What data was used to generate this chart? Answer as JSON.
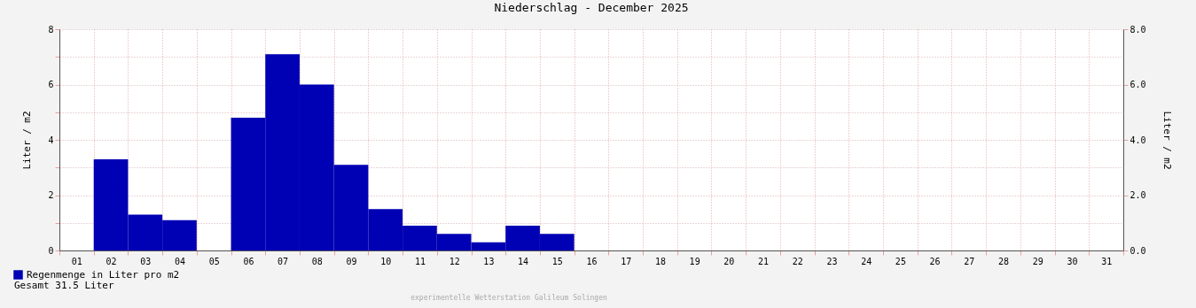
{
  "chart_data": {
    "type": "bar",
    "title": "Niederschlag - December 2025",
    "categories": [
      "01",
      "02",
      "03",
      "04",
      "05",
      "06",
      "07",
      "08",
      "09",
      "10",
      "11",
      "12",
      "13",
      "14",
      "15",
      "16",
      "17",
      "18",
      "19",
      "20",
      "21",
      "22",
      "23",
      "24",
      "25",
      "26",
      "27",
      "28",
      "29",
      "30",
      "31"
    ],
    "series": [
      {
        "name": "Regenmenge in Liter pro m2",
        "color": "#0000b4",
        "values": [
          0,
          3.3,
          1.3,
          1.1,
          0,
          4.8,
          7.1,
          6.0,
          3.1,
          1.5,
          0.9,
          0.6,
          0.3,
          0.9,
          0.6,
          null,
          null,
          null,
          null,
          null,
          null,
          null,
          null,
          null,
          null,
          null,
          null,
          null,
          null,
          null,
          null
        ]
      }
    ],
    "ylabel": "Liter / m2",
    "y2label": "Liter / m2",
    "ylim": [
      0,
      8
    ],
    "yticks": [
      0,
      {
        "value": 1,
        "label": null
      },
      2,
      {
        "value": 3,
        "label": null
      },
      4,
      {
        "value": 5,
        "label": null
      },
      6,
      {
        "value": 7,
        "label": null
      },
      8
    ],
    "y2lim": [
      0,
      8
    ],
    "y2ticks": [
      {
        "value": 0,
        "label": "0.0"
      },
      {
        "value": 2,
        "label": "2.0"
      },
      {
        "value": 4,
        "label": "4.0"
      },
      {
        "value": 6,
        "label": "6.0"
      },
      {
        "value": 8,
        "label": "8.0"
      }
    ],
    "grid": true,
    "legend": "bottom left",
    "annotations": [
      "Gesamt 31.5 Liter",
      "experimentelle Wetterstation Galileum Solingen"
    ]
  }
}
